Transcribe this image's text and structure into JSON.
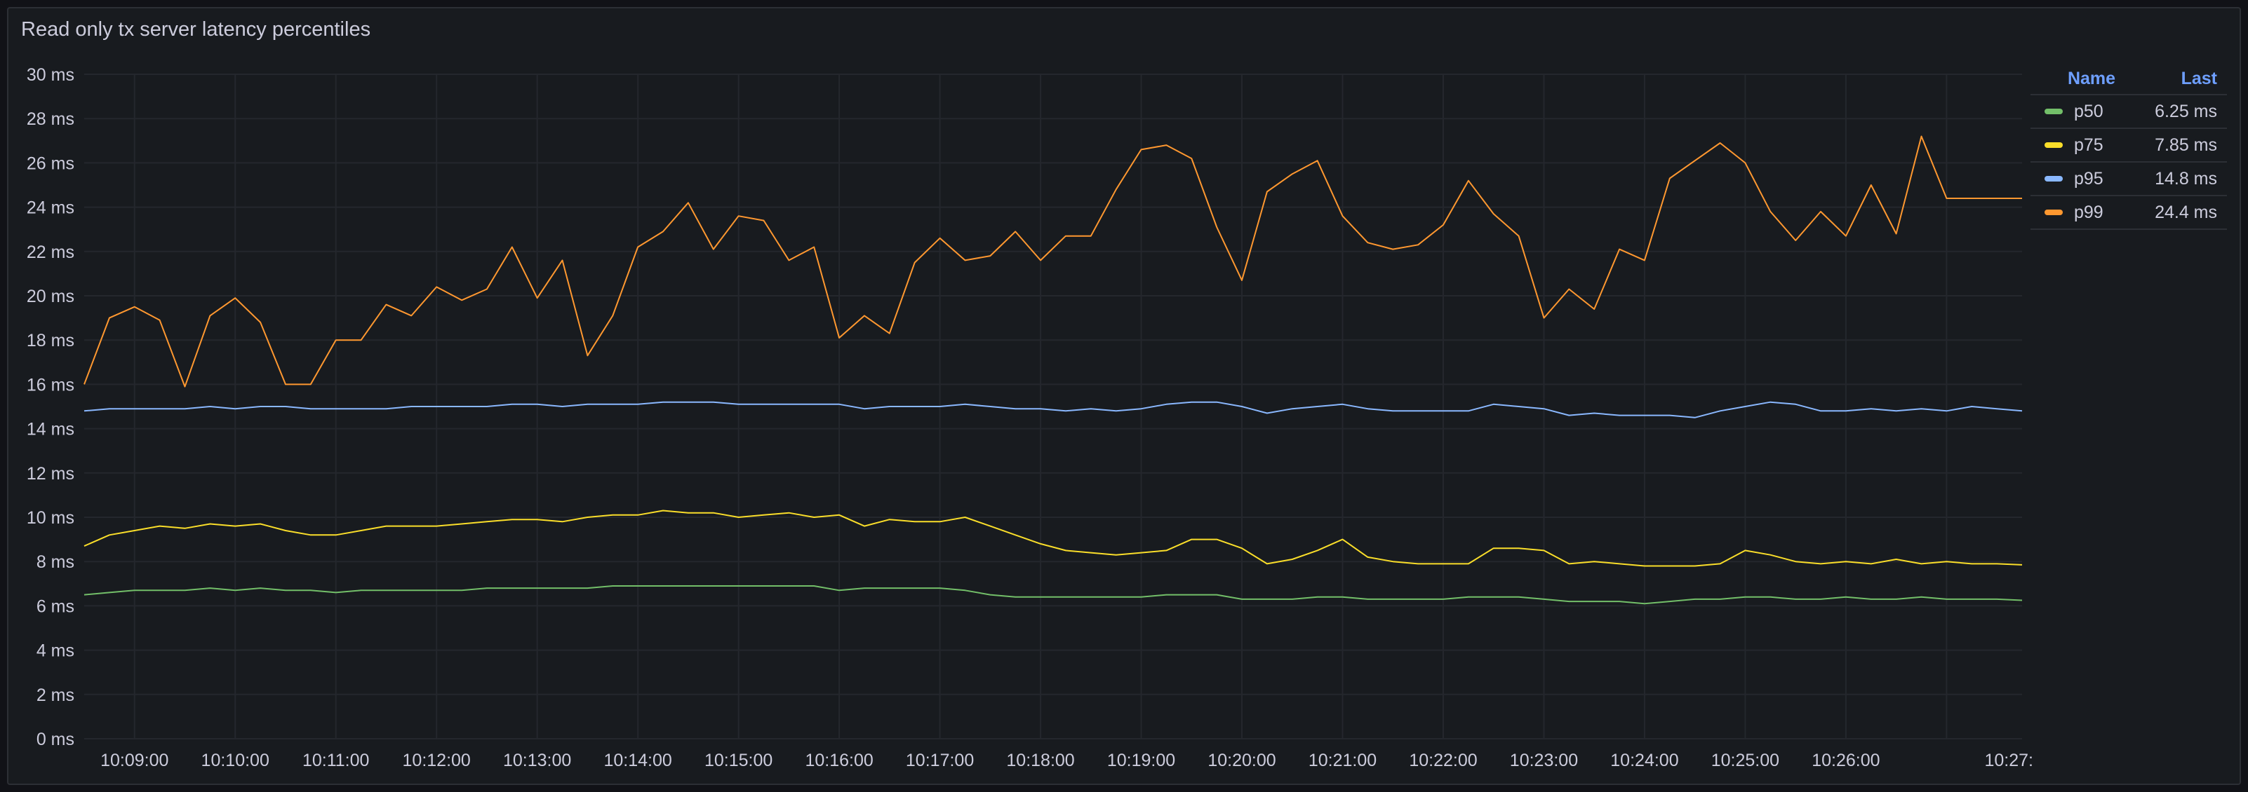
{
  "panel": {
    "title": "Read only tx server latency percentiles"
  },
  "legend": {
    "name_header": "Name",
    "last_header": "Last",
    "items": [
      {
        "name": "p50",
        "last": "6.25 ms",
        "color": "#73bf69"
      },
      {
        "name": "p75",
        "last": "7.85 ms",
        "color": "#fade2a"
      },
      {
        "name": "p95",
        "last": "14.8 ms",
        "color": "#8ab8ff"
      },
      {
        "name": "p99",
        "last": "24.4 ms",
        "color": "#ff9830"
      }
    ]
  },
  "chart_data": {
    "type": "line",
    "title": "Read only tx server latency percentiles",
    "ylim": [
      0,
      30
    ],
    "y_ticks": [
      "0 ms",
      "2 ms",
      "4 ms",
      "6 ms",
      "8 ms",
      "10 ms",
      "12 ms",
      "14 ms",
      "16 ms",
      "18 ms",
      "20 ms",
      "22 ms",
      "24 ms",
      "26 ms",
      "28 ms",
      "30 ms"
    ],
    "x_ticks": [
      "10:09:00",
      "10:10:00",
      "10:11:00",
      "10:12:00",
      "10:13:00",
      "10:14:00",
      "10:15:00",
      "10:16:00",
      "10:17:00",
      "10:18:00",
      "10:19:00",
      "10:20:00",
      "10:21:00",
      "10:22:00",
      "10:23:00",
      "10:24:00",
      "10:25:00",
      "10:26:00",
      "10:27:"
    ],
    "x_range": [
      "10:08:30",
      "10:27:45"
    ],
    "x": [
      "10:08:30",
      "10:08:45",
      "10:09:00",
      "10:09:15",
      "10:09:30",
      "10:09:45",
      "10:10:00",
      "10:10:15",
      "10:10:30",
      "10:10:45",
      "10:11:00",
      "10:11:15",
      "10:11:30",
      "10:11:45",
      "10:12:00",
      "10:12:15",
      "10:12:30",
      "10:12:45",
      "10:13:00",
      "10:13:15",
      "10:13:30",
      "10:13:45",
      "10:14:00",
      "10:14:15",
      "10:14:30",
      "10:14:45",
      "10:15:00",
      "10:15:15",
      "10:15:30",
      "10:15:45",
      "10:16:00",
      "10:16:15",
      "10:16:30",
      "10:16:45",
      "10:17:00",
      "10:17:15",
      "10:17:30",
      "10:17:45",
      "10:18:00",
      "10:18:15",
      "10:18:30",
      "10:18:45",
      "10:19:00",
      "10:19:15",
      "10:19:30",
      "10:19:45",
      "10:20:00",
      "10:20:15",
      "10:20:30",
      "10:20:45",
      "10:21:00",
      "10:21:15",
      "10:21:30",
      "10:21:45",
      "10:22:00",
      "10:22:15",
      "10:22:30",
      "10:22:45",
      "10:23:00",
      "10:23:15",
      "10:23:30",
      "10:23:45",
      "10:24:00",
      "10:24:15",
      "10:24:30",
      "10:24:45",
      "10:25:00",
      "10:25:15",
      "10:25:30",
      "10:25:45",
      "10:26:00",
      "10:26:15",
      "10:26:30",
      "10:26:45",
      "10:27:00",
      "10:27:15",
      "10:27:30",
      "10:27:45"
    ],
    "series": [
      {
        "name": "p50",
        "color": "#73bf69",
        "values": [
          6.5,
          6.6,
          6.7,
          6.7,
          6.7,
          6.8,
          6.7,
          6.8,
          6.7,
          6.7,
          6.6,
          6.7,
          6.7,
          6.7,
          6.7,
          6.7,
          6.8,
          6.8,
          6.8,
          6.8,
          6.8,
          6.9,
          6.9,
          6.9,
          6.9,
          6.9,
          6.9,
          6.9,
          6.9,
          6.9,
          6.7,
          6.8,
          6.8,
          6.8,
          6.8,
          6.7,
          6.5,
          6.4,
          6.4,
          6.4,
          6.4,
          6.4,
          6.4,
          6.5,
          6.5,
          6.5,
          6.3,
          6.3,
          6.3,
          6.4,
          6.4,
          6.3,
          6.3,
          6.3,
          6.3,
          6.4,
          6.4,
          6.4,
          6.3,
          6.2,
          6.2,
          6.2,
          6.1,
          6.2,
          6.3,
          6.3,
          6.4,
          6.4,
          6.3,
          6.3,
          6.4,
          6.3,
          6.3,
          6.4,
          6.3,
          6.3,
          6.3,
          6.25
        ]
      },
      {
        "name": "p75",
        "color": "#fade2a",
        "values": [
          8.7,
          9.2,
          9.4,
          9.6,
          9.5,
          9.7,
          9.6,
          9.7,
          9.4,
          9.2,
          9.2,
          9.4,
          9.6,
          9.6,
          9.6,
          9.7,
          9.8,
          9.9,
          9.9,
          9.8,
          10.0,
          10.1,
          10.1,
          10.3,
          10.2,
          10.2,
          10.0,
          10.1,
          10.2,
          10.0,
          10.1,
          9.6,
          9.9,
          9.8,
          9.8,
          10.0,
          9.6,
          9.2,
          8.8,
          8.5,
          8.4,
          8.3,
          8.4,
          8.5,
          9.0,
          9.0,
          8.6,
          7.9,
          8.1,
          8.5,
          9.0,
          8.2,
          8.0,
          7.9,
          7.9,
          7.9,
          8.6,
          8.6,
          8.5,
          7.9,
          8.0,
          7.9,
          7.8,
          7.8,
          7.8,
          7.9,
          8.5,
          8.3,
          8.0,
          7.9,
          8.0,
          7.9,
          8.1,
          7.9,
          8.0,
          7.9,
          7.9,
          7.85
        ]
      },
      {
        "name": "p95",
        "color": "#8ab8ff",
        "values": [
          14.8,
          14.9,
          14.9,
          14.9,
          14.9,
          15.0,
          14.9,
          15.0,
          15.0,
          14.9,
          14.9,
          14.9,
          14.9,
          15.0,
          15.0,
          15.0,
          15.0,
          15.1,
          15.1,
          15.0,
          15.1,
          15.1,
          15.1,
          15.2,
          15.2,
          15.2,
          15.1,
          15.1,
          15.1,
          15.1,
          15.1,
          14.9,
          15.0,
          15.0,
          15.0,
          15.1,
          15.0,
          14.9,
          14.9,
          14.8,
          14.9,
          14.8,
          14.9,
          15.1,
          15.2,
          15.2,
          15.0,
          14.7,
          14.9,
          15.0,
          15.1,
          14.9,
          14.8,
          14.8,
          14.8,
          14.8,
          15.1,
          15.0,
          14.9,
          14.6,
          14.7,
          14.6,
          14.6,
          14.6,
          14.5,
          14.8,
          15.0,
          15.2,
          15.1,
          14.8,
          14.8,
          14.9,
          14.8,
          14.9,
          14.8,
          15.0,
          14.9,
          14.8
        ]
      },
      {
        "name": "p99",
        "color": "#ff9830",
        "values": [
          16.0,
          19.0,
          19.5,
          18.9,
          15.9,
          19.1,
          19.9,
          18.8,
          16.0,
          16.0,
          18.0,
          18.0,
          19.6,
          19.1,
          20.4,
          19.8,
          20.3,
          22.2,
          19.9,
          21.6,
          17.3,
          19.1,
          22.2,
          22.9,
          24.2,
          22.1,
          23.6,
          23.4,
          21.6,
          22.2,
          18.1,
          19.1,
          18.3,
          21.5,
          22.6,
          21.6,
          21.8,
          22.9,
          21.6,
          22.7,
          22.7,
          24.8,
          26.6,
          26.8,
          26.2,
          23.1,
          20.7,
          24.7,
          25.5,
          26.1,
          23.6,
          22.4,
          22.1,
          22.3,
          23.2,
          25.2,
          23.7,
          22.7,
          19.0,
          20.3,
          19.4,
          22.1,
          21.6,
          25.3,
          26.1,
          26.9,
          26.0,
          23.8,
          22.5,
          23.8,
          22.7,
          25.0,
          22.8,
          27.2,
          24.4,
          24.4,
          24.4,
          24.4
        ]
      }
    ]
  }
}
